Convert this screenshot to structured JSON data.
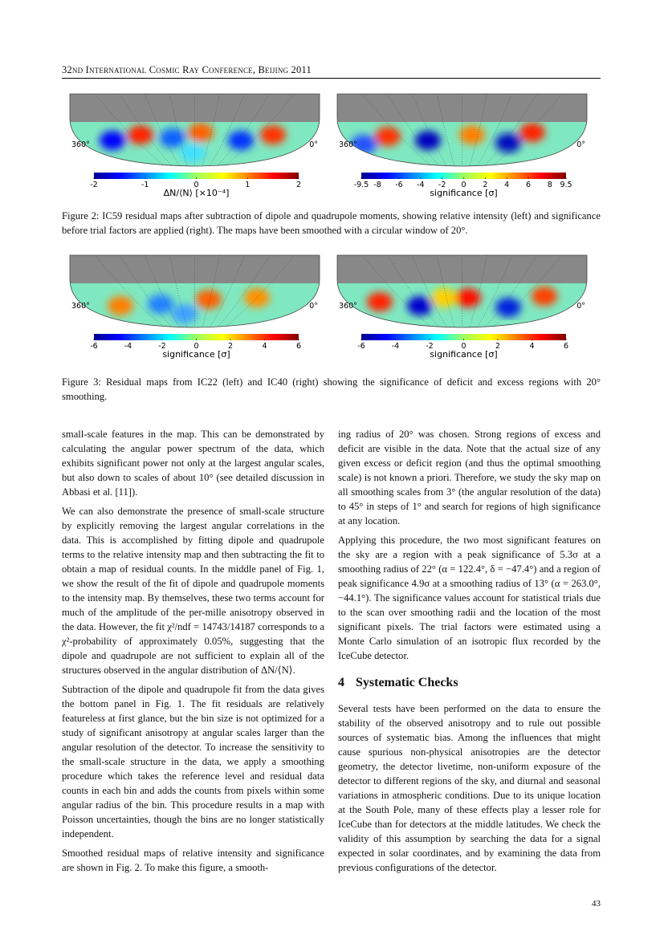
{
  "header": {
    "running_title": "32nd International Cosmic Ray Conference, Beijing 2011"
  },
  "figures": [
    {
      "panels": [
        {
          "left_label": "360°",
          "right_label": "0°",
          "colorbar_ticks": [
            -2,
            -1,
            0,
            1,
            2
          ],
          "colorbar_label": "ΔN/⟨N⟩ [×10⁻⁴]"
        },
        {
          "left_label": "360°",
          "right_label": "0°",
          "colorbar_ticks": [
            -9.5,
            -8,
            -6,
            -4,
            -2,
            0,
            2,
            4,
            6,
            8,
            9.5
          ],
          "colorbar_label": "significance [σ]"
        }
      ],
      "caption": "Figure 2: IC59 residual maps after subtraction of dipole and quadrupole moments, showing relative intensity (left) and significance before trial factors are applied (right). The maps have been smoothed with a circular window of 20°."
    },
    {
      "panels": [
        {
          "left_label": "360°",
          "right_label": "0°",
          "colorbar_ticks": [
            -6,
            -4,
            -2,
            0,
            2,
            4,
            6
          ],
          "colorbar_label": "significance [σ]"
        },
        {
          "left_label": "360°",
          "right_label": "0°",
          "colorbar_ticks": [
            -6,
            -4,
            -2,
            0,
            2,
            4,
            6
          ],
          "colorbar_label": "significance [σ]"
        }
      ],
      "caption": "Figure 3: Residual maps from IC22 (left) and IC40 (right) showing the significance of deficit and excess regions with 20° smoothing."
    }
  ],
  "left_column": {
    "paragraphs": [
      "small-scale features in the map. This can be demonstrated by calculating the angular power spectrum of the data, which exhibits significant power not only at the largest angular scales, but also down to scales of about 10° (see detailed discussion in Abbasi et al. [11]).",
      "We can also demonstrate the presence of small-scale structure by explicitly removing the largest angular correlations in the data. This is accomplished by fitting dipole and quadrupole terms to the relative intensity map and then subtracting the fit to obtain a map of residual counts. In the middle panel of Fig. 1, we show the result of the fit of dipole and quadrupole moments to the intensity map. By themselves, these two terms account for much of the amplitude of the per-mille anisotropy observed in the data. However, the fit χ²/ndf = 14743/14187 corresponds to a χ²-probability of approximately 0.05%, suggesting that the dipole and quadrupole are not sufficient to explain all of the structures observed in the angular distribution of ΔN/⟨N⟩.",
      "Subtraction of the dipole and quadrupole fit from the data gives the bottom panel in Fig. 1. The fit residuals are relatively featureless at first glance, but the bin size is not optimized for a study of significant anisotropy at angular scales larger than the angular resolution of the detector. To increase the sensitivity to the small-scale structure in the data, we apply a smoothing procedure which takes the reference level and residual data counts in each bin and adds the counts from pixels within some angular radius of the bin. This procedure results in a map with Poisson uncertainties, though the bins are no longer statistically independent.",
      "Smoothed residual maps of relative intensity and significance are shown in Fig. 2. To make this figure, a smooth-"
    ]
  },
  "right_column": {
    "paragraphs_before": [
      "ing radius of 20° was chosen. Strong regions of excess and deficit are visible in the data. Note that the actual size of any given excess or deficit region (and thus the optimal smoothing scale) is not known a priori. Therefore, we study the sky map on all smoothing scales from 3° (the angular resolution of the data) to 45° in steps of 1° and search for regions of high significance at any location.",
      "Applying this procedure, the two most significant features on the sky are a region with a peak significance of 5.3σ at a smoothing radius of 22° (α = 122.4°, δ = −47.4°) and a region of peak significance 4.9σ at a smoothing radius of 13° (α = 263.0°, −44.1°). The significance values account for statistical trials due to the scan over smoothing radii and the location of the most significant pixels. The trial factors were estimated using a Monte Carlo simulation of an isotropic flux recorded by the IceCube detector."
    ],
    "section_number": "4",
    "section_title": "Systematic Checks",
    "paragraphs_after": [
      "Several tests have been performed on the data to ensure the stability of the observed anisotropy and to rule out possible sources of systematic bias. Among the influences that might cause spurious non-physical anisotropies are the detector geometry, the detector livetime, non-uniform exposure of the detector to different regions of the sky, and diurnal and seasonal variations in atmospheric conditions. Due to its unique location at the South Pole, many of these effects play a lesser role for IceCube than for detectors at the middle latitudes. We check the validity of this assumption by searching the data for a signal expected in solar coordinates, and by examining the data from previous configurations of the detector."
    ]
  },
  "footer": {
    "page_number": "43"
  }
}
